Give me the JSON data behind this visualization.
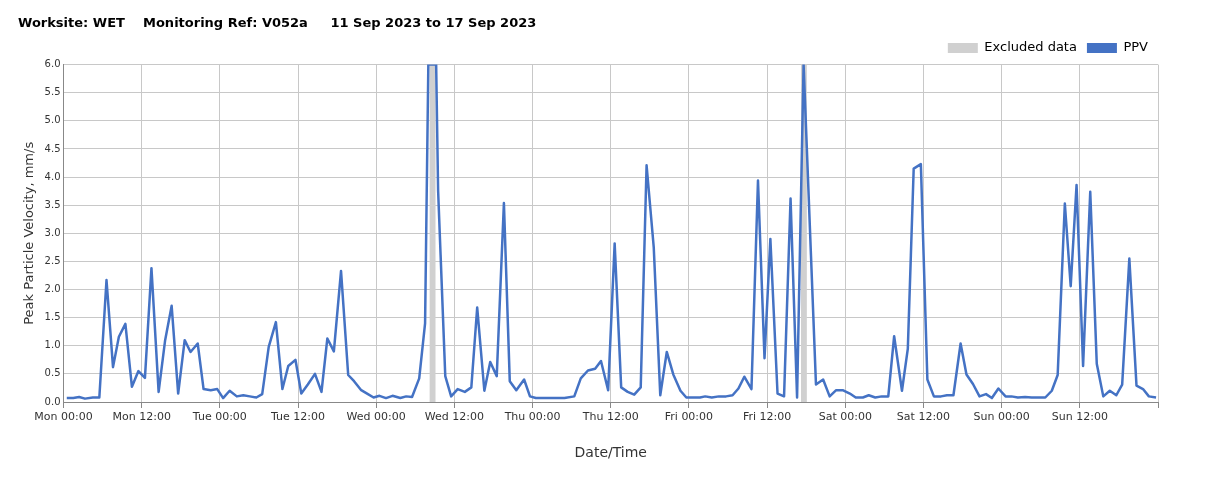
{
  "chart_data": {
    "type": "line",
    "title": "Worksite: WET    Monitoring Ref: V052a     11 Sep 2023 to 17 Sep 2023",
    "xlabel": "Date/Time",
    "ylabel": "Peak Particle Velocity, mm/s",
    "xlim": [
      "2023-09-11T00:00",
      "2023-09-18T00:00"
    ],
    "xticks": [
      {
        "value": "2023-09-11T00:00",
        "label": "Mon 00:00"
      },
      {
        "value": "2023-09-11T12:00",
        "label": "Mon 12:00"
      },
      {
        "value": "2023-09-12T00:00",
        "label": "Tue 00:00"
      },
      {
        "value": "2023-09-12T12:00",
        "label": "Tue 12:00"
      },
      {
        "value": "2023-09-13T00:00",
        "label": "Wed 00:00"
      },
      {
        "value": "2023-09-13T12:00",
        "label": "Wed 12:00"
      },
      {
        "value": "2023-09-14T00:00",
        "label": "Thu 00:00"
      },
      {
        "value": "2023-09-14T12:00",
        "label": "Thu 12:00"
      },
      {
        "value": "2023-09-15T00:00",
        "label": "Fri 00:00"
      },
      {
        "value": "2023-09-15T12:00",
        "label": "Fri 12:00"
      },
      {
        "value": "2023-09-16T00:00",
        "label": "Sat 00:00"
      },
      {
        "value": "2023-09-16T12:00",
        "label": "Sat 12:00"
      },
      {
        "value": "2023-09-17T00:00",
        "label": "Sun 00:00"
      },
      {
        "value": "2023-09-17T12:00",
        "label": "Sun 12:00"
      },
      {
        "value": "2023-09-18T00:00",
        "label": null
      }
    ],
    "ylim": [
      0,
      6
    ],
    "yticks": [
      {
        "value": 0,
        "label": "0.0"
      },
      {
        "value": 0.5,
        "label": "0.5"
      },
      {
        "value": 1,
        "label": "1.0"
      },
      {
        "value": 1.5,
        "label": "1.5"
      },
      {
        "value": 2,
        "label": "2.0"
      },
      {
        "value": 2.5,
        "label": "2.5"
      },
      {
        "value": 3,
        "label": "3.0"
      },
      {
        "value": 3.5,
        "label": "3.5"
      },
      {
        "value": 4,
        "label": "4.0"
      },
      {
        "value": 4.5,
        "label": "4.5"
      },
      {
        "value": 5,
        "label": "5.0"
      },
      {
        "value": 5.5,
        "label": "5.5"
      },
      {
        "value": 6,
        "label": "6.0"
      }
    ],
    "grid": true,
    "legend": "top right",
    "marker": "none",
    "line_style": "solid",
    "bands": [
      {
        "axis": "x",
        "from": "2023-09-13T08:12",
        "to": "2023-09-13T09:06",
        "label": "Excluded data",
        "color": "#d0d0d0"
      },
      {
        "axis": "x",
        "from": "2023-09-15T17:12",
        "to": "2023-09-15T18:06",
        "color": "#d0d0d0"
      }
    ],
    "series": [
      {
        "name": "PPV",
        "color": "#4472c4",
        "x": [
          "2023-09-11T00:30",
          "2023-09-11T01:30",
          "2023-09-11T02:24",
          "2023-09-11T03:18",
          "2023-09-11T04:30",
          "2023-09-11T05:30",
          "2023-09-11T06:36",
          "2023-09-11T07:36",
          "2023-09-11T08:30",
          "2023-09-11T09:30",
          "2023-09-11T10:30",
          "2023-09-11T11:30",
          "2023-09-11T12:30",
          "2023-09-11T13:30",
          "2023-09-11T14:36",
          "2023-09-11T15:36",
          "2023-09-11T16:36",
          "2023-09-11T17:36",
          "2023-09-11T18:36",
          "2023-09-11T19:30",
          "2023-09-11T20:36",
          "2023-09-11T21:30",
          "2023-09-11T22:36",
          "2023-09-11T23:36",
          "2023-09-12T00:30",
          "2023-09-12T01:30",
          "2023-09-12T02:36",
          "2023-09-12T03:36",
          "2023-09-12T04:36",
          "2023-09-12T05:36",
          "2023-09-12T06:30",
          "2023-09-12T07:30",
          "2023-09-12T08:36",
          "2023-09-12T09:36",
          "2023-09-12T10:30",
          "2023-09-12T11:36",
          "2023-09-12T12:30",
          "2023-09-12T13:30",
          "2023-09-12T14:36",
          "2023-09-12T15:36",
          "2023-09-12T16:30",
          "2023-09-12T17:30",
          "2023-09-12T18:36",
          "2023-09-12T19:42",
          "2023-09-12T20:36",
          "2023-09-12T21:42",
          "2023-09-12T22:36",
          "2023-09-12T23:36",
          "2023-09-13T00:30",
          "2023-09-13T01:30",
          "2023-09-13T02:30",
          "2023-09-13T03:42",
          "2023-09-13T04:36",
          "2023-09-13T05:30",
          "2023-09-13T06:36",
          "2023-09-13T07:30",
          "2023-09-13T08:00",
          "2023-09-13T09:12",
          "2023-09-13T09:30",
          "2023-09-13T10:36",
          "2023-09-13T11:30",
          "2023-09-13T12:30",
          "2023-09-13T13:36",
          "2023-09-13T14:36",
          "2023-09-13T15:30",
          "2023-09-13T16:36",
          "2023-09-13T17:30",
          "2023-09-13T18:30",
          "2023-09-13T19:36",
          "2023-09-13T20:30",
          "2023-09-13T21:30",
          "2023-09-13T22:42",
          "2023-09-13T23:36",
          "2023-09-14T00:30",
          "2023-09-14T04:54",
          "2023-09-14T06:24",
          "2023-09-14T07:24",
          "2023-09-14T08:30",
          "2023-09-14T09:36",
          "2023-09-14T10:30",
          "2023-09-14T11:36",
          "2023-09-14T12:36",
          "2023-09-14T13:36",
          "2023-09-14T14:36",
          "2023-09-14T15:36",
          "2023-09-14T16:36",
          "2023-09-14T17:30",
          "2023-09-14T18:36",
          "2023-09-14T19:36",
          "2023-09-14T20:36",
          "2023-09-14T21:36",
          "2023-09-14T22:42",
          "2023-09-14T23:36",
          "2023-09-15T00:42",
          "2023-09-15T01:42",
          "2023-09-15T02:30",
          "2023-09-15T03:30",
          "2023-09-15T04:36",
          "2023-09-15T05:42",
          "2023-09-15T06:42",
          "2023-09-15T07:36",
          "2023-09-15T08:30",
          "2023-09-15T09:36",
          "2023-09-15T10:36",
          "2023-09-15T11:36",
          "2023-09-15T12:30",
          "2023-09-15T13:36",
          "2023-09-15T14:36",
          "2023-09-15T15:36",
          "2023-09-15T16:36",
          "2023-09-15T17:36",
          "2023-09-15T19:30",
          "2023-09-15T20:36",
          "2023-09-15T21:36",
          "2023-09-15T22:36",
          "2023-09-15T23:36",
          "2023-09-16T00:42",
          "2023-09-16T01:36",
          "2023-09-16T02:42",
          "2023-09-16T03:36",
          "2023-09-16T04:36",
          "2023-09-16T05:36",
          "2023-09-16T06:36",
          "2023-09-16T07:30",
          "2023-09-16T08:42",
          "2023-09-16T09:36",
          "2023-09-16T10:30",
          "2023-09-16T11:36",
          "2023-09-16T12:36",
          "2023-09-16T13:36",
          "2023-09-16T14:42",
          "2023-09-16T15:36",
          "2023-09-16T16:36",
          "2023-09-16T17:42",
          "2023-09-16T18:36",
          "2023-09-16T19:36",
          "2023-09-16T20:36",
          "2023-09-16T21:36",
          "2023-09-16T22:30",
          "2023-09-16T23:30",
          "2023-09-17T00:36",
          "2023-09-17T01:30",
          "2023-09-17T02:30",
          "2023-09-17T03:36",
          "2023-09-17T04:36",
          "2023-09-17T05:42",
          "2023-09-17T06:42",
          "2023-09-17T07:42",
          "2023-09-17T08:36",
          "2023-09-17T09:42",
          "2023-09-17T10:36",
          "2023-09-17T11:30",
          "2023-09-17T12:30",
          "2023-09-17T13:36",
          "2023-09-17T14:36",
          "2023-09-17T15:36",
          "2023-09-17T16:36",
          "2023-09-17T17:36",
          "2023-09-17T18:30",
          "2023-09-17T19:36",
          "2023-09-17T20:42",
          "2023-09-17T21:42",
          "2023-09-17T22:36",
          "2023-09-17T23:42"
        ],
        "values": [
          0.07,
          0.07,
          0.09,
          0.06,
          0.08,
          0.08,
          2.17,
          0.62,
          1.16,
          1.39,
          0.27,
          0.55,
          0.43,
          2.38,
          0.18,
          1.1,
          1.71,
          0.15,
          1.1,
          0.89,
          1.04,
          0.23,
          0.21,
          0.23,
          0.07,
          0.2,
          0.1,
          0.12,
          0.1,
          0.08,
          0.14,
          0.98,
          1.42,
          0.23,
          0.64,
          0.75,
          0.15,
          0.31,
          0.5,
          0.18,
          1.13,
          0.9,
          2.33,
          0.48,
          0.37,
          0.21,
          0.15,
          0.08,
          0.11,
          0.07,
          0.11,
          0.07,
          0.1,
          0.09,
          0.42,
          1.4,
          6.0,
          6.0,
          3.76,
          0.46,
          0.1,
          0.23,
          0.18,
          0.26,
          1.68,
          0.2,
          0.71,
          0.46,
          3.54,
          0.37,
          0.21,
          0.4,
          0.1,
          0.07,
          0.07,
          0.1,
          0.42,
          0.56,
          0.59,
          0.73,
          0.21,
          2.82,
          0.26,
          0.18,
          0.13,
          0.26,
          4.21,
          2.75,
          0.12,
          0.89,
          0.49,
          0.2,
          0.08,
          0.08,
          0.08,
          0.1,
          0.08,
          0.1,
          0.1,
          0.12,
          0.24,
          0.45,
          0.23,
          3.94,
          0.78,
          2.9,
          0.15,
          0.1,
          3.62,
          0.08,
          6.0,
          0.31,
          0.4,
          0.1,
          0.21,
          0.21,
          0.15,
          0.08,
          0.08,
          0.12,
          0.08,
          0.1,
          0.1,
          1.17,
          0.2,
          0.95,
          4.15,
          4.23,
          0.4,
          0.1,
          0.1,
          0.12,
          0.12,
          1.04,
          0.49,
          0.32,
          0.1,
          0.14,
          0.07,
          0.24,
          0.1,
          0.1,
          0.08,
          0.09,
          0.08,
          0.08,
          0.08,
          0.2,
          0.48,
          3.53,
          2.06,
          3.86,
          0.64,
          3.74,
          0.68,
          0.1,
          0.2,
          0.12,
          0.31,
          2.55,
          0.29,
          0.23,
          0.1,
          0.08
        ]
      }
    ]
  }
}
